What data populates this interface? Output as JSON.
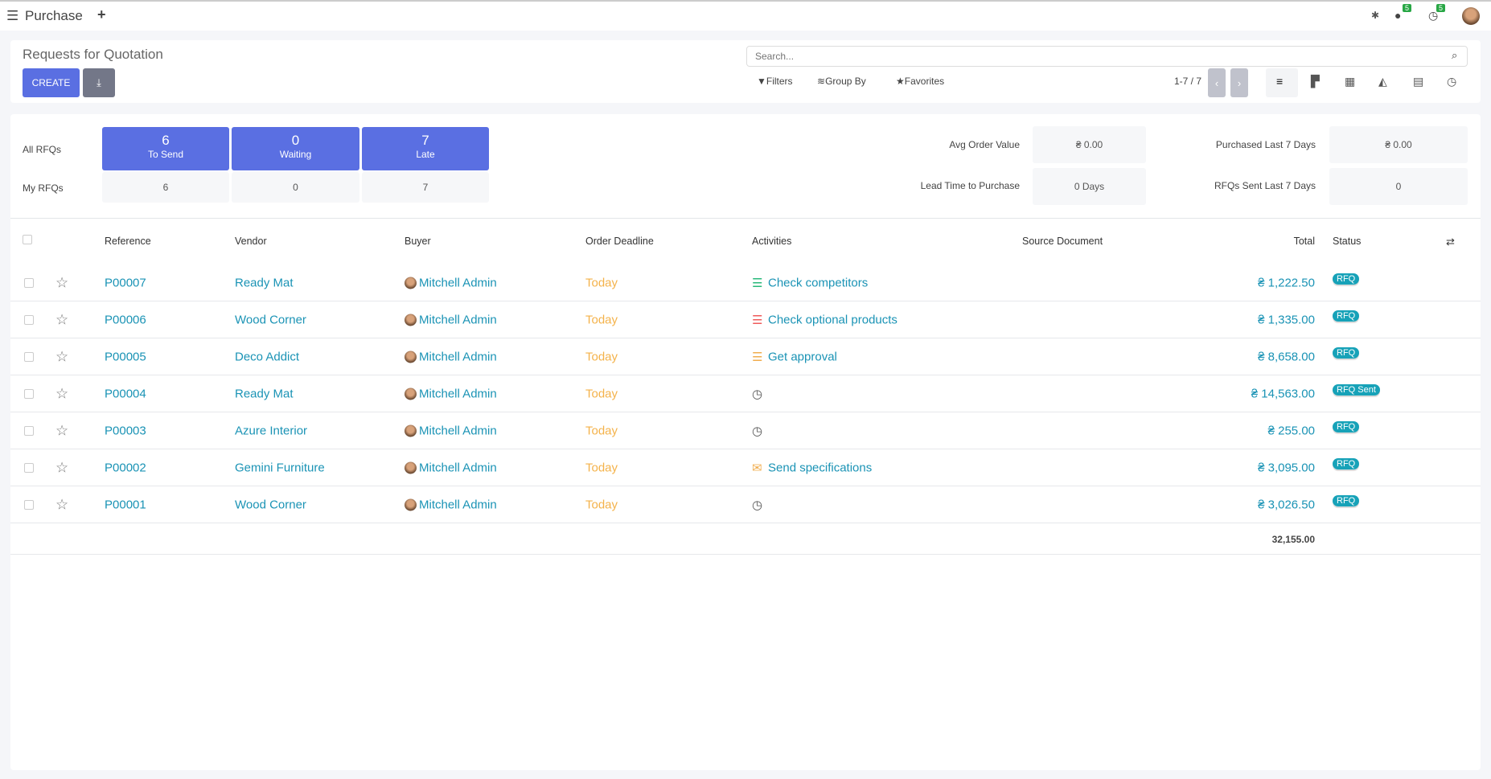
{
  "topbar": {
    "app_title": "Purchase",
    "chat_count": "5",
    "activity_count": "5"
  },
  "control": {
    "title": "Requests for Quotation",
    "create_label": "CREATE",
    "search_placeholder": "Search...",
    "filters": "Filters",
    "group_by": "Group By",
    "favorites": "Favorites",
    "pager": "1-7 / 7"
  },
  "dashboard": {
    "row_labels": [
      "All RFQs",
      "My RFQs"
    ],
    "all": [
      {
        "value": "6",
        "label": "To Send"
      },
      {
        "value": "0",
        "label": "Waiting"
      },
      {
        "value": "7",
        "label": "Late"
      }
    ],
    "my": [
      "6",
      "0",
      "7"
    ],
    "kpis": [
      {
        "label": "Avg Order Value",
        "value": "₴ 0.00"
      },
      {
        "label": "Purchased Last 7 Days",
        "value": "₴ 0.00"
      },
      {
        "label": "Lead Time to Purchase",
        "value": "0 Days"
      },
      {
        "label": "RFQs Sent Last 7 Days",
        "value": "0"
      }
    ]
  },
  "table": {
    "headers": {
      "reference": "Reference",
      "vendor": "Vendor",
      "buyer": "Buyer",
      "deadline": "Order Deadline",
      "activities": "Activities",
      "source": "Source Document",
      "total": "Total",
      "status": "Status"
    },
    "rows": [
      {
        "ref": "P00007",
        "vendor": "Ready Mat",
        "buyer": "Mitchell Admin",
        "deadline": "Today",
        "activity": "Check competitors",
        "activity_icon": "list-icon",
        "activity_color": "#28b87a",
        "total": "₴ 1,222.50",
        "status": "RFQ"
      },
      {
        "ref": "P00006",
        "vendor": "Wood Corner",
        "buyer": "Mitchell Admin",
        "deadline": "Today",
        "activity": "Check optional products",
        "activity_icon": "list-icon",
        "activity_color": "#ef5b5b",
        "total": "₴ 1,335.00",
        "status": "RFQ"
      },
      {
        "ref": "P00005",
        "vendor": "Deco Addict",
        "buyer": "Mitchell Admin",
        "deadline": "Today",
        "activity": "Get approval",
        "activity_icon": "list-icon",
        "activity_color": "#f0ad4e",
        "total": "₴ 8,658.00",
        "status": "RFQ"
      },
      {
        "ref": "P00004",
        "vendor": "Ready Mat",
        "buyer": "Mitchell Admin",
        "deadline": "Today",
        "activity": "",
        "activity_icon": "clock-icon",
        "total": "₴ 14,563.00",
        "status": "RFQ Sent"
      },
      {
        "ref": "P00003",
        "vendor": "Azure Interior",
        "buyer": "Mitchell Admin",
        "deadline": "Today",
        "activity": "",
        "activity_icon": "clock-icon",
        "total": "₴ 255.00",
        "status": "RFQ"
      },
      {
        "ref": "P00002",
        "vendor": "Gemini Furniture",
        "buyer": "Mitchell Admin",
        "deadline": "Today",
        "activity": "Send specifications",
        "activity_icon": "envelope-icon",
        "activity_color": "#f0ad4e",
        "total": "₴ 3,095.00",
        "status": "RFQ"
      },
      {
        "ref": "P00001",
        "vendor": "Wood Corner",
        "buyer": "Mitchell Admin",
        "deadline": "Today",
        "activity": "",
        "activity_icon": "clock-icon",
        "total": "₴ 3,026.50",
        "status": "RFQ"
      }
    ],
    "grand_total": "32,155.00"
  },
  "colors": {
    "primary": "#5a6fe2",
    "link": "#1a93b5",
    "badge": "#17a2b8",
    "deadline": "#f4b24a"
  }
}
